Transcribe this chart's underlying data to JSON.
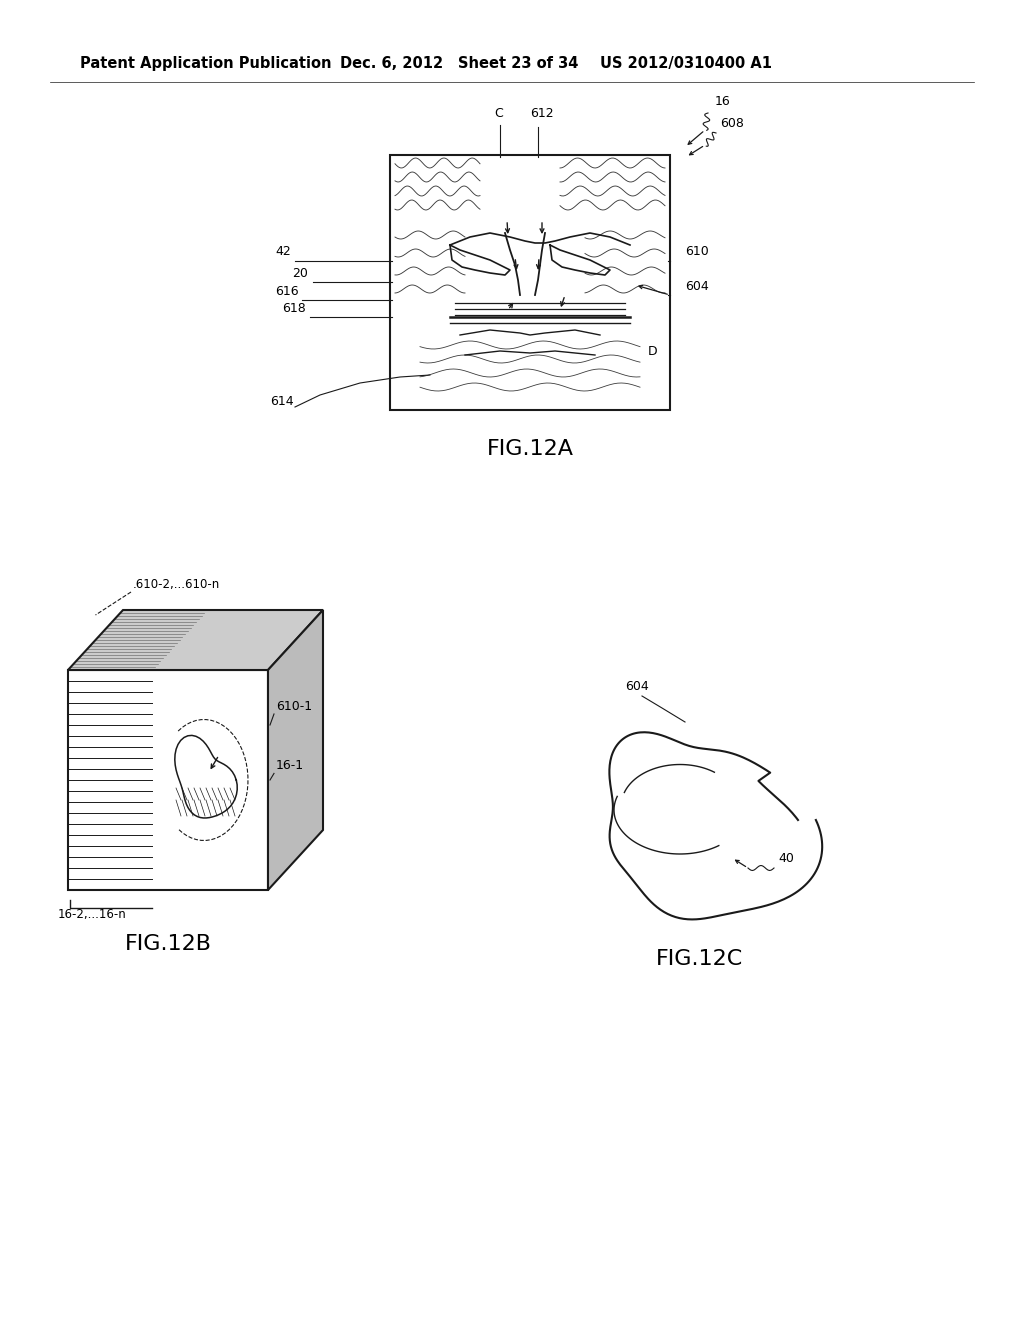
{
  "bg_color": "#ffffff",
  "header_text": "Patent Application Publication",
  "header_date": "Dec. 6, 2012",
  "header_sheet": "Sheet 23 of 34",
  "header_patent": "US 2012/0310400 A1",
  "fig12a_label": "FIG.12A",
  "fig12b_label": "FIG.12B",
  "fig12c_label": "FIG.12C",
  "line_color": "#1a1a1a",
  "text_color": "#000000"
}
